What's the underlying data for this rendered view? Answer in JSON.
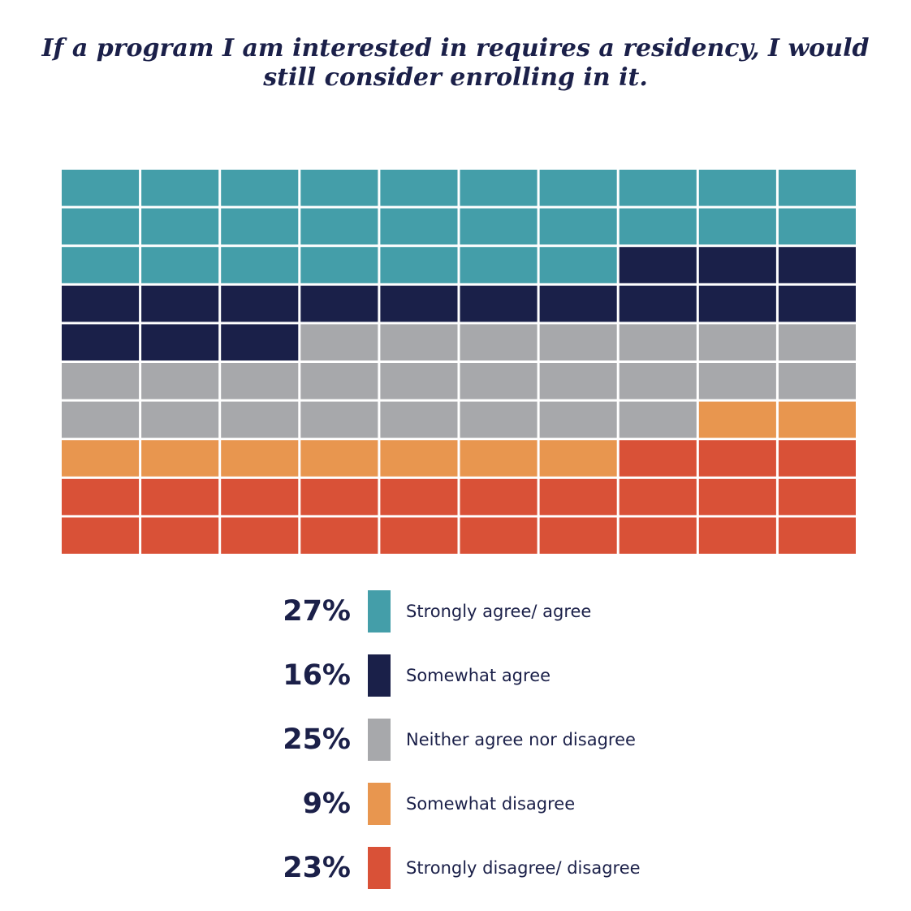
{
  "chart_data": {
    "type": "waffle",
    "title": "If a program I am interested in requires a residency, I would still consider enrolling in it.",
    "grid": {
      "rows": 10,
      "cols": 10
    },
    "unit": "%",
    "series": [
      {
        "name": "Strongly agree/ agree",
        "value": 27,
        "label": "27%",
        "color": "#449ea9"
      },
      {
        "name": "Somewhat agree",
        "value": 16,
        "label": "16%",
        "color": "#1a2049"
      },
      {
        "name": "Neither agree nor disagree",
        "value": 25,
        "label": "25%",
        "color": "#a7a8ab"
      },
      {
        "name": "Somewhat disagree",
        "value": 9,
        "label": "9%",
        "color": "#e8964f"
      },
      {
        "name": "Strongly disagree/ disagree",
        "value": 23,
        "label": "23%",
        "color": "#d95137"
      }
    ]
  }
}
